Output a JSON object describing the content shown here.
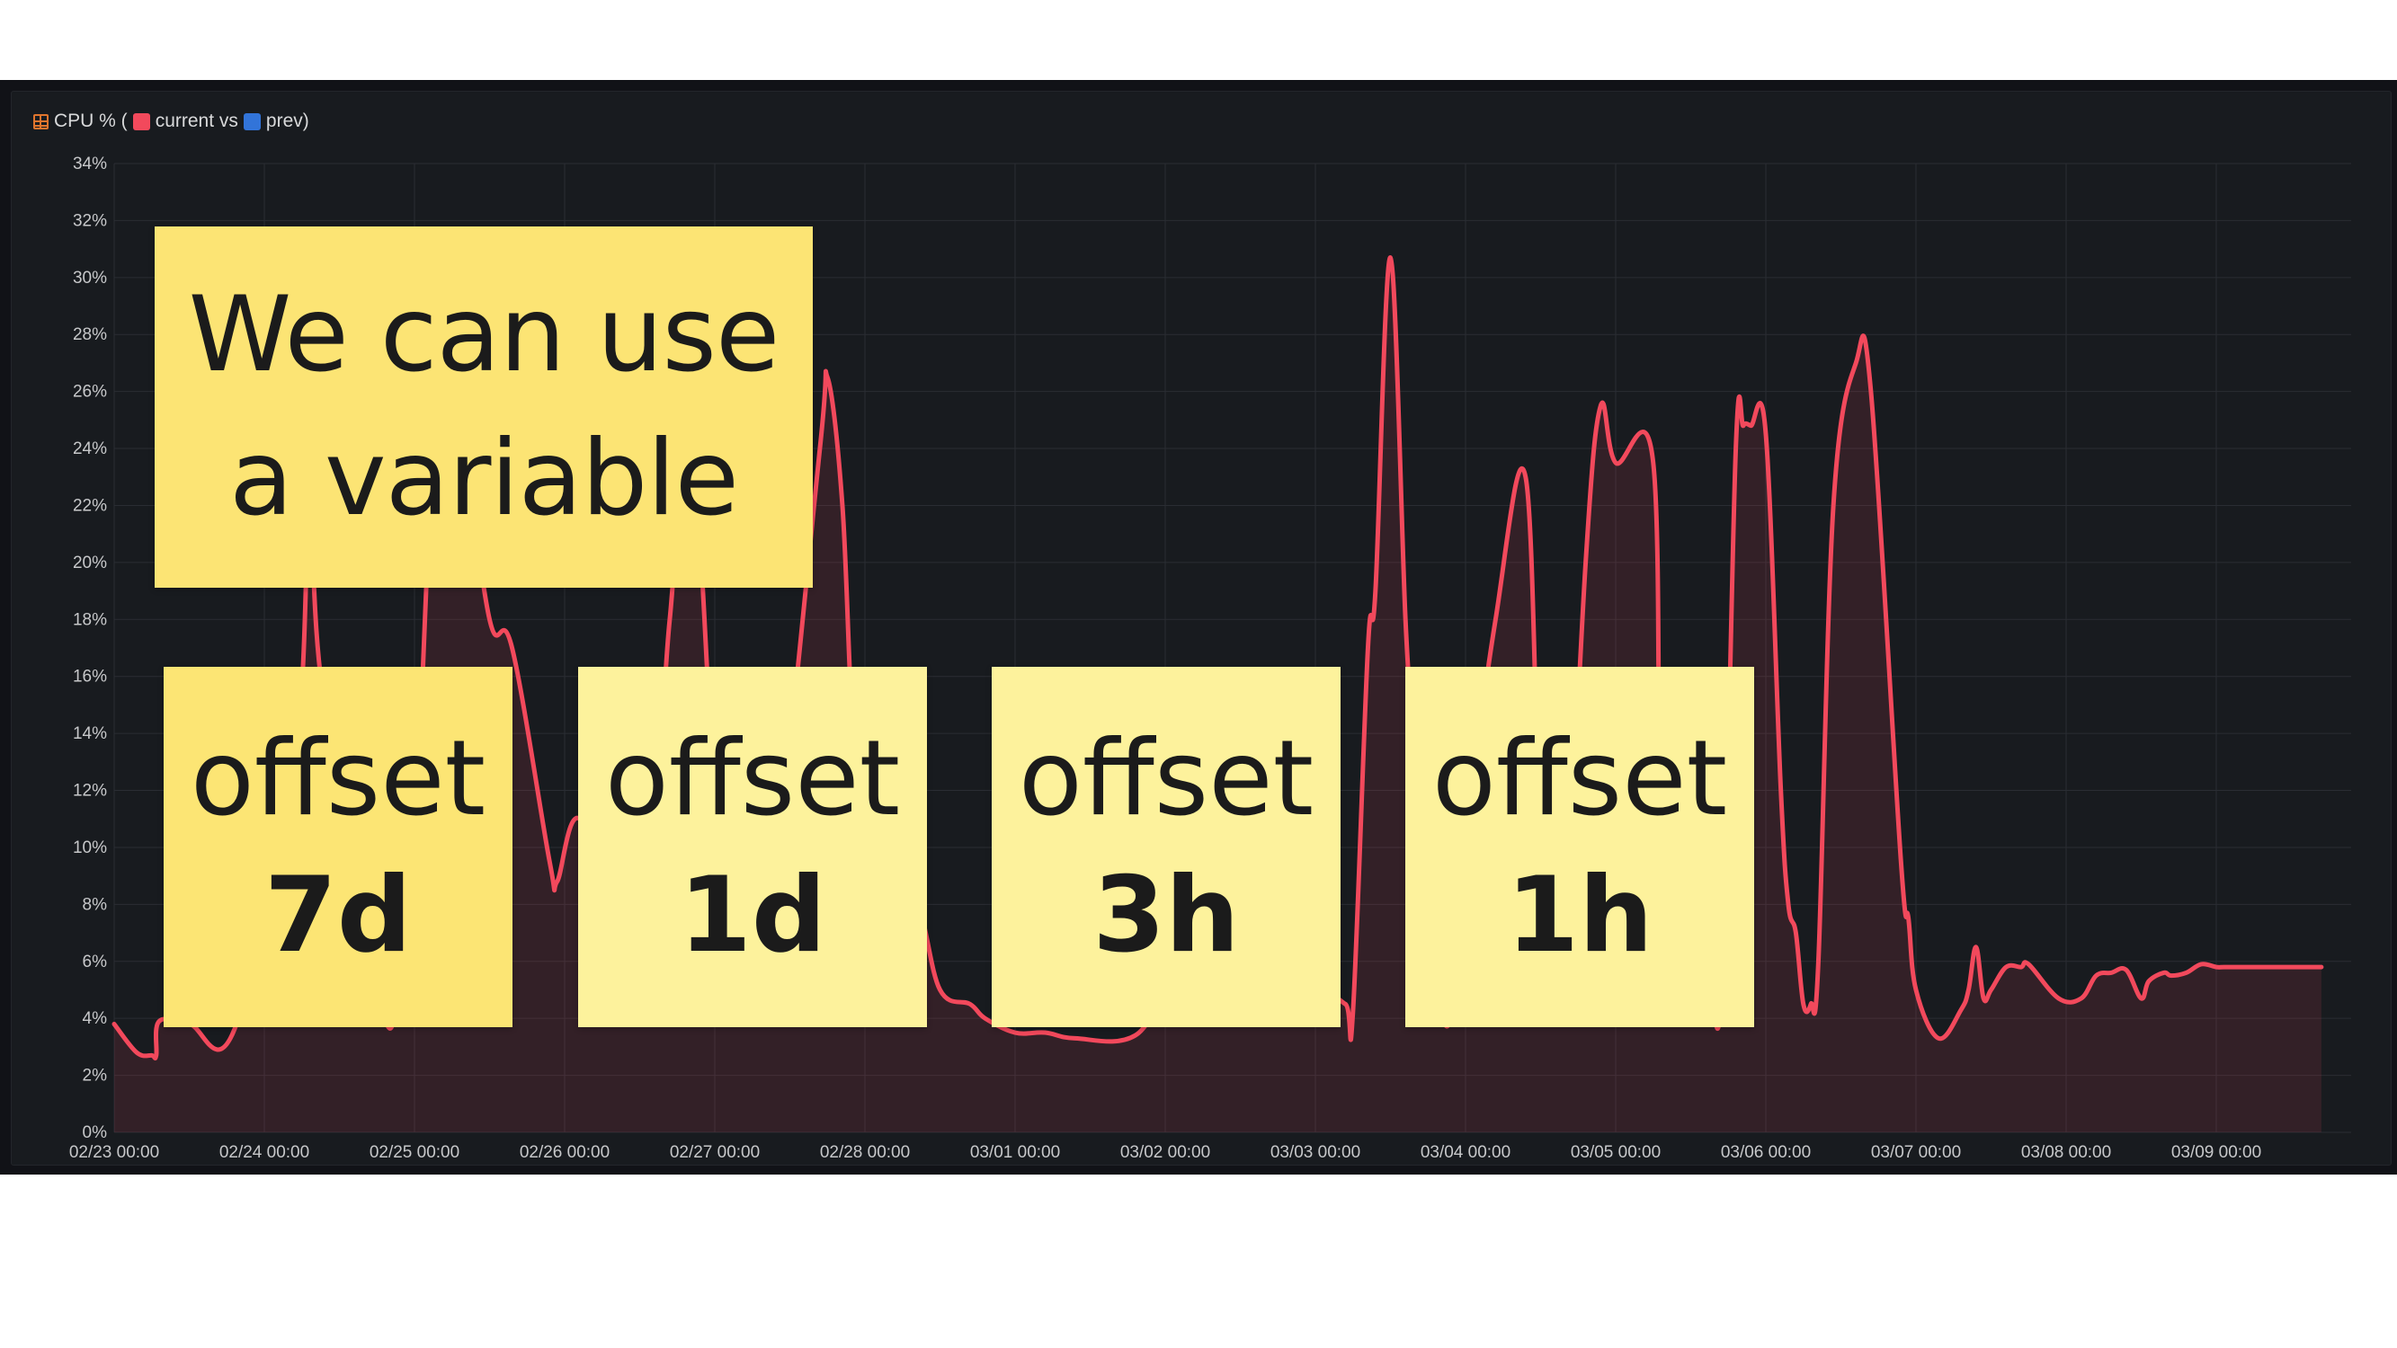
{
  "panel": {
    "title_prefix": "CPU % (",
    "current_label": "current vs",
    "prev_label": "prev)"
  },
  "colors": {
    "current": "#f2495c",
    "prev": "#3274d9",
    "note_main": "#fce474",
    "note_strong": "#fce574",
    "note_light": "#fdf29c",
    "panel_bg": "#181b1f",
    "grid": "#2a2d33",
    "tick_text": "#c7c8ca"
  },
  "notes": {
    "main_line1": "We can use",
    "main_line2": "a variable",
    "offsets": [
      {
        "word": "offset",
        "value": "7d"
      },
      {
        "word": "offset",
        "value": "1d"
      },
      {
        "word": "offset",
        "value": "3h"
      },
      {
        "word": "offset",
        "value": "1h"
      }
    ]
  },
  "chart_data": {
    "type": "area",
    "title": "CPU % (current vs prev)",
    "xlabel": "",
    "ylabel": "",
    "ylim": [
      0,
      34
    ],
    "y_ticks": [
      "0%",
      "2%",
      "4%",
      "6%",
      "8%",
      "10%",
      "12%",
      "14%",
      "16%",
      "18%",
      "20%",
      "22%",
      "24%",
      "26%",
      "28%",
      "30%",
      "32%",
      "34%"
    ],
    "x_ticks": [
      "02/23 00:00",
      "02/24 00:00",
      "02/25 00:00",
      "02/26 00:00",
      "02/27 00:00",
      "02/28 00:00",
      "03/01 00:00",
      "03/02 00:00",
      "03/03 00:00",
      "03/04 00:00",
      "03/05 00:00",
      "03/06 00:00",
      "03/07 00:00",
      "03/08 00:00",
      "03/09 00:00"
    ],
    "grid": true,
    "legend": "header",
    "series": [
      {
        "name": "current",
        "x": [
          0,
          0.15,
          0.25,
          0.28,
          0.3,
          0.5,
          0.8,
          1.2,
          1.3,
          1.4,
          1.8,
          1.9,
          2.0,
          2.15,
          2.3,
          2.5,
          2.65,
          2.9,
          2.95,
          3.1,
          3.4,
          3.6,
          3.7,
          3.85,
          4.05,
          4.2,
          4.4,
          4.7,
          4.75,
          4.85,
          4.95,
          5.15,
          5.35,
          5.5,
          5.7,
          5.8,
          6.0,
          6.2,
          6.4,
          6.8,
          7.1,
          7.5,
          8.0,
          8.2,
          8.25,
          8.35,
          8.4,
          8.5,
          8.6,
          8.65,
          8.7,
          8.75,
          8.8,
          8.9,
          9.0,
          9.2,
          9.4,
          9.5,
          9.6,
          9.65,
          9.8,
          9.9,
          10.0,
          10.25,
          10.3,
          10.4,
          10.5,
          10.6,
          10.7,
          10.8,
          10.85,
          10.9,
          11.0,
          11.1,
          11.15,
          11.2,
          11.25,
          11.3,
          11.35,
          11.45,
          11.6,
          11.7,
          11.9,
          11.95,
          12.0,
          12.15,
          12.3,
          12.35,
          12.4,
          12.45,
          12.5,
          12.6,
          12.7,
          12.75,
          12.95,
          13.1,
          13.2,
          13.3,
          13.4,
          13.5,
          13.55,
          13.65,
          13.7,
          13.8,
          13.9,
          14.0,
          14.05,
          14.15,
          14.2,
          14.3,
          14.4,
          14.5,
          14.55,
          14.65,
          14.7
        ],
        "y": [
          3.8,
          2.8,
          2.7,
          2.7,
          3.9,
          3.8,
          3.6,
          13.0,
          21.0,
          15.0,
          4.0,
          7.0,
          10.0,
          26.0,
          25.0,
          18.0,
          17.0,
          9.5,
          8.8,
          11.0,
          7.0,
          11.0,
          18.0,
          24.0,
          7.0,
          4.0,
          9.0,
          24.0,
          26.5,
          22.0,
          12.0,
          9.0,
          8.0,
          5.0,
          4.5,
          4.0,
          3.5,
          3.5,
          3.3,
          3.4,
          5.5,
          5.0,
          5.0,
          4.5,
          4.2,
          17.0,
          19.0,
          30.7,
          18.0,
          14.0,
          10.0,
          6.0,
          5.0,
          4.0,
          10.0,
          18.0,
          23.0,
          10.0,
          6.0,
          5.0,
          20.0,
          25.5,
          23.5,
          23.5,
          9.0,
          7.0,
          6.3,
          7.5,
          4.5,
          24.0,
          24.8,
          24.8,
          24.5,
          12.0,
          8.0,
          7.0,
          4.5,
          4.5,
          6.0,
          22.0,
          27.0,
          26.0,
          9.5,
          7.5,
          5.0,
          3.3,
          4.3,
          5.0,
          6.5,
          4.7,
          5.0,
          5.8,
          5.8,
          5.9,
          4.7,
          4.7,
          5.5,
          5.6,
          5.7,
          4.7,
          5.3,
          5.6,
          5.5,
          5.6,
          5.9,
          5.8,
          5.8,
          5.8,
          5.8,
          5.8,
          5.8,
          5.8,
          5.8,
          5.8,
          5.8
        ]
      }
    ]
  }
}
